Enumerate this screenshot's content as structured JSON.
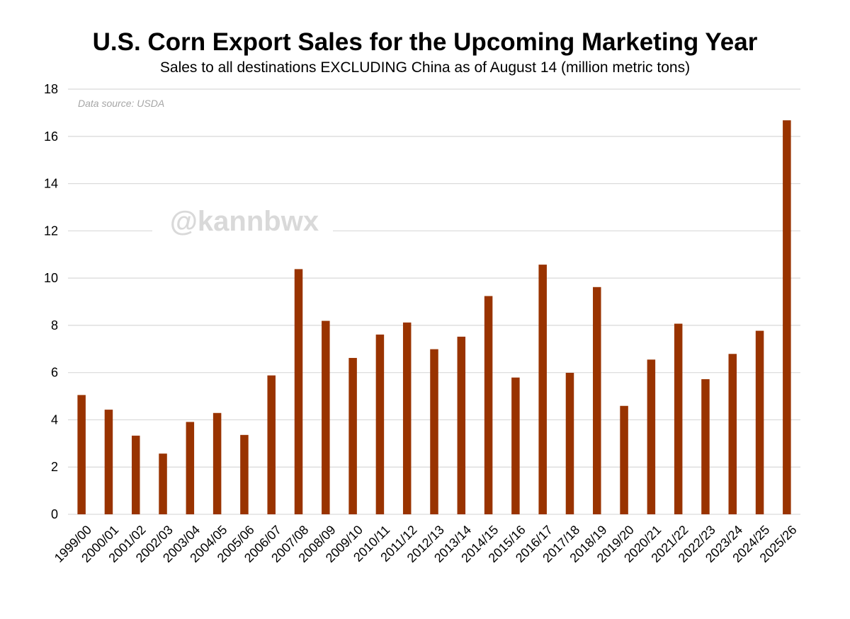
{
  "chart_data": {
    "type": "bar",
    "title": "U.S. Corn Export Sales for the Upcoming Marketing Year",
    "subtitle": "Sales to all destinations EXCLUDING China as of August 14 (million metric tons)",
    "source_note": "Data source: USDA",
    "watermark": "@kannbwx",
    "xlabel": "",
    "ylabel": "",
    "ylim": [
      0,
      18
    ],
    "yticks": [
      0,
      2,
      4,
      6,
      8,
      10,
      12,
      14,
      16,
      18
    ],
    "grid": true,
    "legend": "none",
    "bar_color": "#993300",
    "grid_color": "#d9d9d9",
    "categories": [
      "1999/00",
      "2000/01",
      "2001/02",
      "2002/03",
      "2003/04",
      "2004/05",
      "2005/06",
      "2006/07",
      "2007/08",
      "2008/09",
      "2009/10",
      "2010/11",
      "2011/12",
      "2012/13",
      "2013/14",
      "2014/15",
      "2015/16",
      "2016/17",
      "2017/18",
      "2018/19",
      "2019/20",
      "2020/21",
      "2021/22",
      "2022/23",
      "2023/24",
      "2024/25",
      "2025/26"
    ],
    "values": [
      5.05,
      4.43,
      3.33,
      2.57,
      3.91,
      4.29,
      3.36,
      5.88,
      10.38,
      8.19,
      6.62,
      7.61,
      8.12,
      6.99,
      7.52,
      9.24,
      5.79,
      10.57,
      5.99,
      9.62,
      4.59,
      6.55,
      8.07,
      5.72,
      6.79,
      7.77,
      16.68
    ]
  }
}
